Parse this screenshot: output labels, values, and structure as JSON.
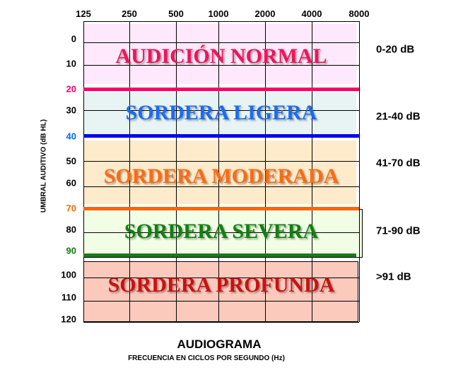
{
  "x_axis": {
    "ticks": [
      "125",
      "250",
      "500",
      "1000",
      "2000",
      "4000",
      "8000"
    ],
    "title": "AUDIOGRAMA",
    "subtitle": "FRECUENCIA EN CICLOS POR SEGUNDO (Hz)"
  },
  "y_axis": {
    "label": "UMBRAL  AUDITIVO  (dB HL)",
    "ticks": [
      "0",
      "10",
      "20",
      "30",
      "40",
      "50",
      "60",
      "70",
      "80",
      "90",
      "100",
      "110",
      "120"
    ]
  },
  "bands": [
    {
      "label": "AUDICIÓN  NORMAL",
      "range": "0-20 dB",
      "color": "#f0145a",
      "fill": "#fde9fb",
      "line_color": "#ff0066"
    },
    {
      "label": "SORDERA LIGERA",
      "range": "21-40 dB",
      "color": "#1a6cf0",
      "fill": "#e8f3f3",
      "line_color": "#0000ee"
    },
    {
      "label": "SORDERA MODERADA",
      "range": "41-70 dB",
      "color": "#ff6a10",
      "fill": "#fdebcb",
      "line_color": "#ff6600"
    },
    {
      "label": "SORDERA SEVERA",
      "range": "71-90 dB",
      "color": "#108010",
      "fill": "#f1fde4",
      "line_color": "#1a7a1a"
    },
    {
      "label": "SORDERA PROFUNDA",
      "range": ">91 dB",
      "color": "#cc1010",
      "fill": "#fccabd",
      "line_color": "#000000"
    }
  ]
}
